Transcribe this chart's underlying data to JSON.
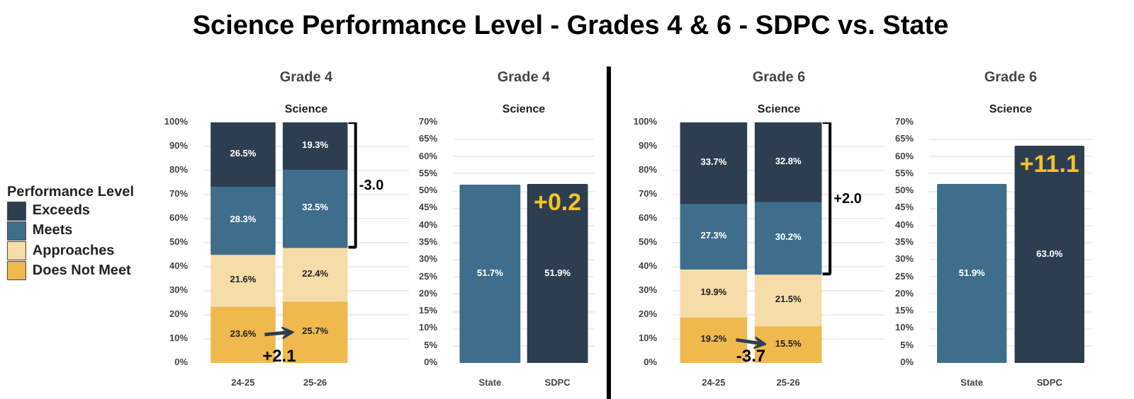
{
  "chart_data": [
    {
      "type": "other",
      "title": "Science Performance Level - Grades 4 & 6 - SDPC vs. State"
    },
    {
      "type": "bar",
      "title": "Grade 4",
      "subtitle": "Science",
      "stacked": true,
      "categories": [
        "24-25",
        "25-26"
      ],
      "ylim": [
        0,
        100
      ],
      "yticks": [
        {
          "value": 0,
          "label": "0%"
        },
        {
          "value": 10,
          "label": "10%"
        },
        {
          "value": 20,
          "label": "20%"
        },
        {
          "value": 30,
          "label": "30%"
        },
        {
          "value": 40,
          "label": "40%"
        },
        {
          "value": 50,
          "label": "50%"
        },
        {
          "value": 60,
          "label": "60%"
        },
        {
          "value": 70,
          "label": "70%"
        },
        {
          "value": 80,
          "label": "80%"
        },
        {
          "value": 90,
          "label": "90%"
        },
        {
          "value": 100,
          "label": "100%"
        }
      ],
      "grid": "y",
      "legend": "left",
      "legend_title": "Performance Level",
      "series": [
        {
          "name": "Does Not Meet",
          "color": "#f0b94d",
          "values": [
            23.6,
            25.7
          ],
          "value_labels": [
            "23.6%",
            "25.7%"
          ]
        },
        {
          "name": "Approaches",
          "color": "#f6dca8",
          "values": [
            21.6,
            22.4
          ],
          "value_labels": [
            "21.6%",
            "22.4%"
          ]
        },
        {
          "name": "Meets",
          "color": "#3f6e8c",
          "values": [
            28.3,
            32.5
          ],
          "value_labels": [
            "28.3%",
            "32.5%"
          ]
        },
        {
          "name": "Exceeds",
          "color": "#2d3e50",
          "values": [
            26.5,
            19.3
          ],
          "value_labels": [
            "26.5%",
            "19.3%"
          ]
        }
      ],
      "annotations": [
        "-3.0",
        "+2.1"
      ]
    },
    {
      "type": "bar",
      "title": "Grade 4",
      "subtitle": "Science",
      "categories": [
        "State",
        "SDPC"
      ],
      "values": [
        51.7,
        51.9
      ],
      "colors": [
        "#3f6e8c",
        "#2d3e50"
      ],
      "value_labels": [
        "51.7%",
        "51.9%"
      ],
      "ylim": [
        0,
        70
      ],
      "yticks": [
        {
          "value": 0,
          "label": "0%"
        },
        {
          "value": 5,
          "label": "5%"
        },
        {
          "value": 10,
          "label": "10%"
        },
        {
          "value": 15,
          "label": "15%"
        },
        {
          "value": 20,
          "label": "20%"
        },
        {
          "value": 25,
          "label": "25%"
        },
        {
          "value": 30,
          "label": "30%"
        },
        {
          "value": 35,
          "label": "35%"
        },
        {
          "value": 40,
          "label": "40%"
        },
        {
          "value": 45,
          "label": "45%"
        },
        {
          "value": 50,
          "label": "50%"
        },
        {
          "value": 55,
          "label": "55%"
        },
        {
          "value": 60,
          "label": "60%"
        },
        {
          "value": 65,
          "label": "65%"
        },
        {
          "value": 70,
          "label": "70%"
        }
      ],
      "grid": "y",
      "annotations": [
        "+0.2"
      ]
    },
    {
      "type": "bar",
      "title": "Grade 6",
      "subtitle": "Science",
      "stacked": true,
      "categories": [
        "24-25",
        "25-26"
      ],
      "ylim": [
        0,
        100
      ],
      "yticks": [
        {
          "value": 0,
          "label": "0%"
        },
        {
          "value": 10,
          "label": "10%"
        },
        {
          "value": 20,
          "label": "20%"
        },
        {
          "value": 30,
          "label": "30%"
        },
        {
          "value": 40,
          "label": "40%"
        },
        {
          "value": 50,
          "label": "50%"
        },
        {
          "value": 60,
          "label": "60%"
        },
        {
          "value": 70,
          "label": "70%"
        },
        {
          "value": 80,
          "label": "80%"
        },
        {
          "value": 90,
          "label": "90%"
        },
        {
          "value": 100,
          "label": "100%"
        }
      ],
      "grid": "y",
      "series": [
        {
          "color": "#f0b94d",
          "values": [
            19.2,
            15.5
          ],
          "value_labels": [
            "19.2%",
            "15.5%"
          ]
        },
        {
          "color": "#f6dca8",
          "values": [
            19.9,
            21.5
          ],
          "value_labels": [
            "19.9%",
            "21.5%"
          ]
        },
        {
          "color": "#3f6e8c",
          "values": [
            27.3,
            30.2
          ],
          "value_labels": [
            "27.3%",
            "30.2%"
          ]
        },
        {
          "color": "#2d3e50",
          "values": [
            33.7,
            32.8
          ],
          "value_labels": [
            "33.7%",
            "32.8%"
          ]
        }
      ],
      "annotations": [
        "+2.0",
        "-3.7"
      ]
    },
    {
      "type": "bar",
      "title": "Grade 6",
      "subtitle": "Science",
      "categories": [
        "State",
        "SDPC"
      ],
      "values": [
        51.9,
        63.0
      ],
      "colors": [
        "#3f6e8c",
        "#2d3e50"
      ],
      "value_labels": [
        "51.9%",
        "63.0%"
      ],
      "ylim": [
        0,
        70
      ],
      "yticks": [
        {
          "value": 0,
          "label": "0%"
        },
        {
          "value": 5,
          "label": "5%"
        },
        {
          "value": 10,
          "label": "10%"
        },
        {
          "value": 15,
          "label": "15%"
        },
        {
          "value": 20,
          "label": "20%"
        },
        {
          "value": 25,
          "label": "25%"
        },
        {
          "value": 30,
          "label": "30%"
        },
        {
          "value": 35,
          "label": "35%"
        },
        {
          "value": 40,
          "label": "40%"
        },
        {
          "value": 45,
          "label": "45%"
        },
        {
          "value": 50,
          "label": "50%"
        },
        {
          "value": 55,
          "label": "55%"
        },
        {
          "value": 60,
          "label": "60%"
        },
        {
          "value": 65,
          "label": "65%"
        },
        {
          "value": 70,
          "label": "70%"
        }
      ],
      "grid": "y",
      "annotations": [
        "+11.1"
      ]
    }
  ]
}
